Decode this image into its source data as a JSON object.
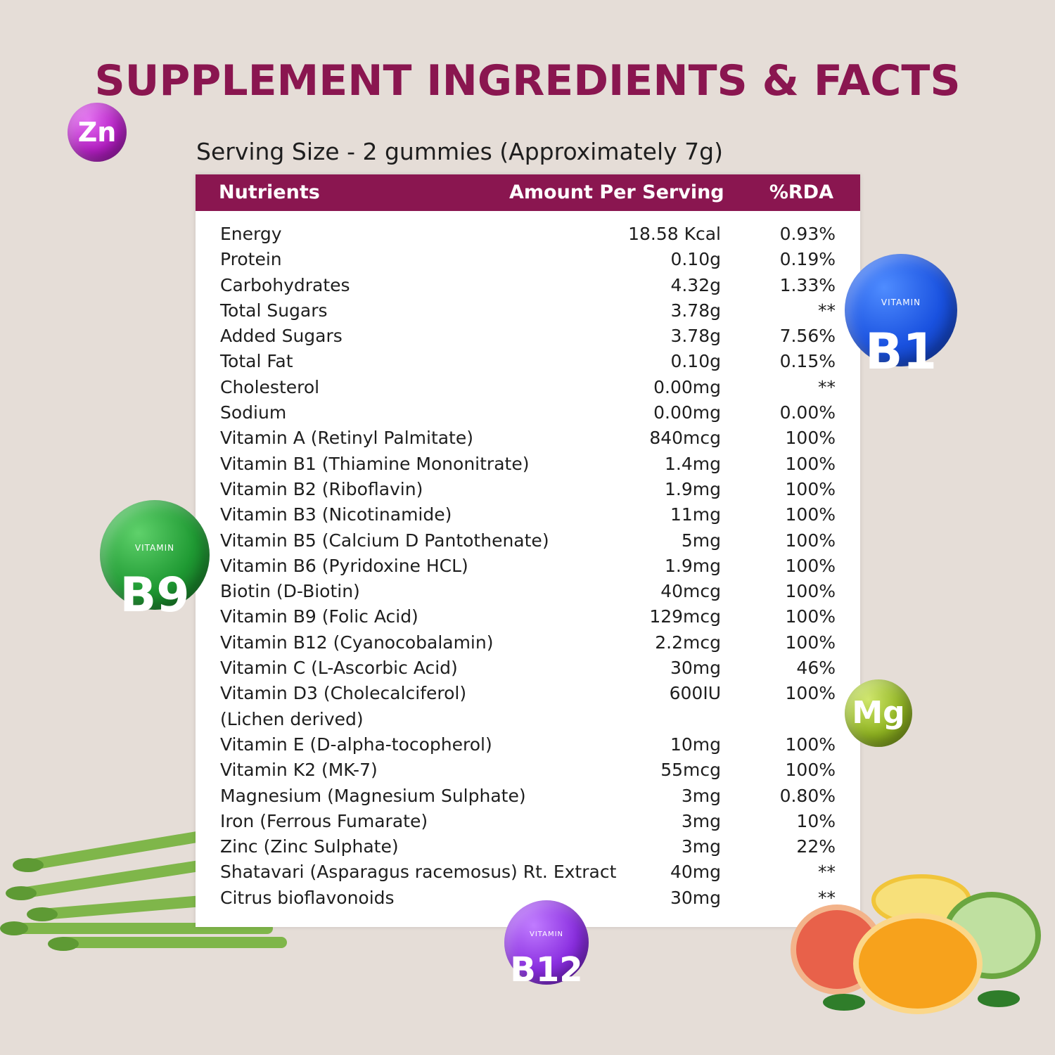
{
  "title": "SUPPLEMENT INGREDIENTS & FACTS",
  "serving_size": "Serving Size - 2 gummies (Approximately 7g)",
  "table": {
    "header": {
      "nutrients": "Nutrients",
      "amount": "Amount Per Serving",
      "rda": "%RDA"
    },
    "rows": [
      {
        "name": "Energy",
        "amount": "18.58 Kcal",
        "rda": "0.93%"
      },
      {
        "name": "Protein",
        "amount": "0.10g",
        "rda": "0.19%"
      },
      {
        "name": "Carbohydrates",
        "amount": "4.32g",
        "rda": "1.33%"
      },
      {
        "name": "Total Sugars",
        "amount": "3.78g",
        "rda": "**"
      },
      {
        "name": "Added Sugars",
        "amount": "3.78g",
        "rda": "7.56%"
      },
      {
        "name": "Total Fat",
        "amount": "0.10g",
        "rda": "0.15%"
      },
      {
        "name": "Cholesterol",
        "amount": "0.00mg",
        "rda": "**"
      },
      {
        "name": "Sodium",
        "amount": "0.00mg",
        "rda": "0.00%"
      },
      {
        "name": "Vitamin A (Retinyl Palmitate)",
        "amount": "840mcg",
        "rda": "100%"
      },
      {
        "name": "Vitamin B1 (Thiamine Mononitrate)",
        "amount": "1.4mg",
        "rda": "100%"
      },
      {
        "name": "Vitamin B2 (Riboflavin)",
        "amount": "1.9mg",
        "rda": "100%"
      },
      {
        "name": "Vitamin B3 (Nicotinamide)",
        "amount": "11mg",
        "rda": "100%"
      },
      {
        "name": "Vitamin B5 (Calcium D Pantothenate)",
        "amount": "5mg",
        "rda": "100%"
      },
      {
        "name": "Vitamin B6 (Pyridoxine HCL)",
        "amount": "1.9mg",
        "rda": "100%"
      },
      {
        "name": "Biotin (D-Biotin)",
        "amount": "40mcg",
        "rda": "100%"
      },
      {
        "name": "Vitamin B9 (Folic Acid)",
        "amount": "129mcg",
        "rda": "100%"
      },
      {
        "name": "Vitamin B12 (Cyanocobalamin)",
        "amount": "2.2mcg",
        "rda": "100%"
      },
      {
        "name": "Vitamin C (L-Ascorbic Acid)",
        "amount": "30mg",
        "rda": "46%"
      },
      {
        "name": "Vitamin D3 (Cholecalciferol)",
        "amount": "600IU",
        "rda": "100%"
      },
      {
        "name": "(Lichen derived)",
        "amount": "",
        "rda": ""
      },
      {
        "name": "Vitamin E (D-alpha-tocopherol)",
        "amount": "10mg",
        "rda": "100%"
      },
      {
        "name": "Vitamin K2 (MK-7)",
        "amount": "55mcg",
        "rda": "100%"
      },
      {
        "name": "Magnesium (Magnesium Sulphate)",
        "amount": "3mg",
        "rda": "0.80%"
      },
      {
        "name": "Iron (Ferrous Fumarate)",
        "amount": "3mg",
        "rda": "10%"
      },
      {
        "name": "Zinc (Zinc Sulphate)",
        "amount": "3mg",
        "rda": "22%"
      },
      {
        "name": "Shatavari (Asparagus racemosus) Rt. Extract",
        "amount": "40mg",
        "rda": "**"
      },
      {
        "name": "Citrus bioflavonoids",
        "amount": "30mg",
        "rda": "**"
      }
    ]
  },
  "badges": {
    "zn": {
      "label": "Zn",
      "color": "#b51fc4"
    },
    "b1": {
      "small": "VITAMIN",
      "label": "B1",
      "color": "#1a52e0"
    },
    "b9": {
      "small": "VITAMIN",
      "label": "B9",
      "color": "#1f9a33"
    },
    "mg": {
      "label": "Mg",
      "color": "#8fb321"
    },
    "b12": {
      "small": "VITAMIN",
      "label": "B12",
      "color": "#8a2ee0"
    }
  },
  "colors": {
    "brand": "#8a1650",
    "background": "#e5ddd7"
  }
}
